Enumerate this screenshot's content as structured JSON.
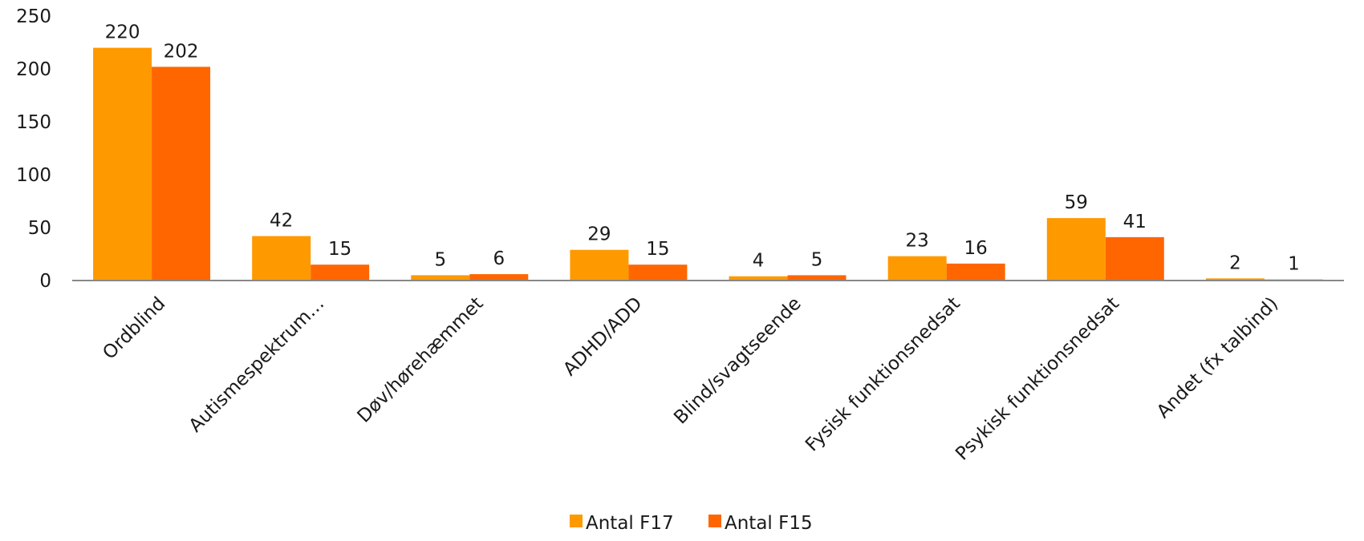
{
  "chart_data": {
    "type": "bar",
    "title": "",
    "xlabel": "",
    "ylabel": "",
    "categories": [
      "Ordblind",
      "Autismespektrum…",
      "Døv/hørehæmmet",
      "ADHD/ADD",
      "Blind/svagtseende",
      "Fysisk funktionsnedsat",
      "Psykisk funktionsnedsat",
      "Andet (fx talbind)"
    ],
    "series": [
      {
        "name": "Antal F17",
        "color": "#FF9900",
        "values": [
          220,
          42,
          5,
          29,
          4,
          23,
          59,
          2
        ]
      },
      {
        "name": "Antal F15",
        "color": "#FF6600",
        "values": [
          202,
          15,
          6,
          15,
          5,
          16,
          41,
          1
        ]
      }
    ],
    "ylim": [
      0,
      250
    ],
    "yticks": [
      0,
      50,
      100,
      150,
      200,
      250
    ],
    "grid": false,
    "legend_position": "bottom",
    "data_labels": true
  }
}
